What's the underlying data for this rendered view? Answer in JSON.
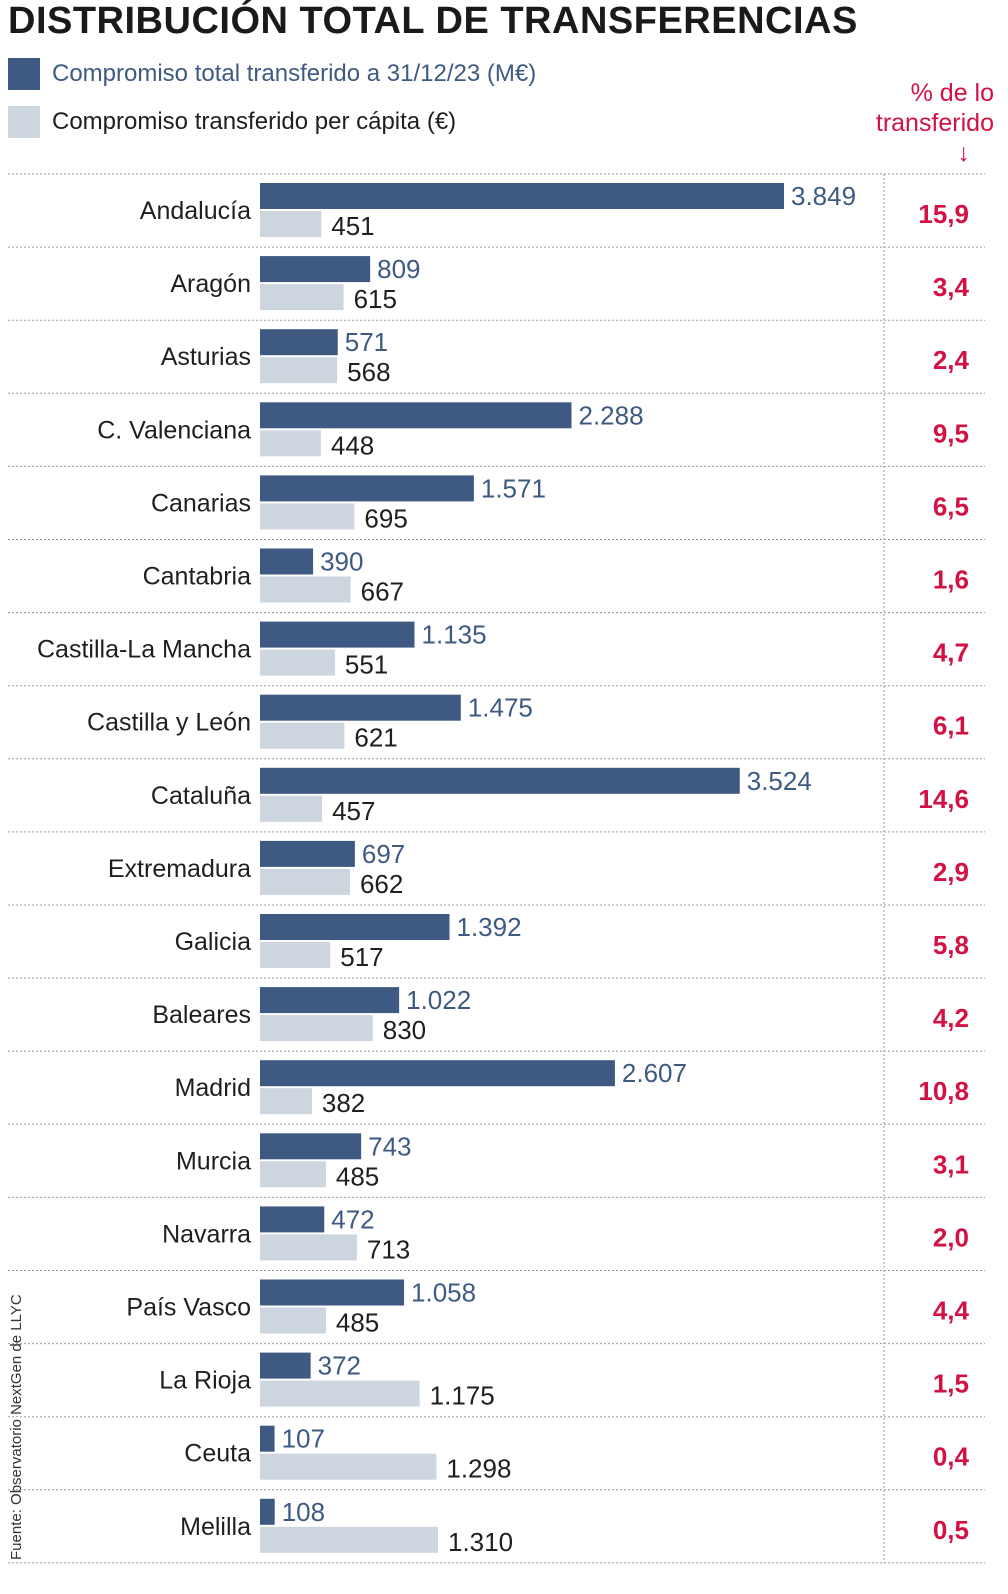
{
  "title": "DISTRIBUCIÓN TOTAL DE TRANSFERENCIAS",
  "legend": {
    "series1": "Compromiso total transferido a 31/12/23 (M€)",
    "series2": "Compromiso transferido per cápita (€)",
    "pct_header_line1": "% de lo",
    "pct_header_line2": "transferido",
    "pct_arrow": "↓"
  },
  "source": "Fuente: Observatorio NextGen de LLYC",
  "colors": {
    "series1": "#3e5a82",
    "series2": "#cdd5df",
    "pct": "#d31145",
    "label1": "#3e5a82",
    "label2": "#1f1f1f"
  },
  "chart_data": {
    "type": "bar",
    "orientation": "horizontal",
    "categories": [
      "Andalucía",
      "Aragón",
      "Asturias",
      "C. Valenciana",
      "Canarias",
      "Cantabria",
      "Castilla-La Mancha",
      "Castilla y León",
      "Cataluña",
      "Extremadura",
      "Galicia",
      "Baleares",
      "Madrid",
      "Murcia",
      "Navarra",
      "País Vasco",
      "La Rioja",
      "Ceuta",
      "Melilla"
    ],
    "series": [
      {
        "name": "Compromiso total transferido a 31/12/23 (M€)",
        "values": [
          3849,
          809,
          571,
          2288,
          1571,
          390,
          1135,
          1475,
          3524,
          697,
          1392,
          1022,
          2607,
          743,
          472,
          1058,
          372,
          107,
          108
        ],
        "labels": [
          "3.849",
          "809",
          "571",
          "2.288",
          "1.571",
          "390",
          "1.135",
          "1.475",
          "3.524",
          "697",
          "1.392",
          "1.022",
          "2.607",
          "743",
          "472",
          "1.058",
          "372",
          "107",
          "108"
        ]
      },
      {
        "name": "Compromiso transferido per cápita (€)",
        "values": [
          451,
          615,
          568,
          448,
          695,
          667,
          551,
          621,
          457,
          662,
          517,
          830,
          382,
          485,
          713,
          485,
          1175,
          1298,
          1310
        ],
        "labels": [
          "451",
          "615",
          "568",
          "448",
          "695",
          "667",
          "551",
          "621",
          "457",
          "662",
          "517",
          "830",
          "382",
          "485",
          "713",
          "485",
          "1.175",
          "1.298",
          "1.310"
        ]
      }
    ],
    "pct_transferido": [
      "15,9",
      "3,4",
      "2,4",
      "9,5",
      "6,5",
      "1,6",
      "4,7",
      "6,1",
      "14,6",
      "2,9",
      "5,8",
      "4,2",
      "10,8",
      "3,1",
      "2,0",
      "4,4",
      "1,5",
      "0,4",
      "0,5"
    ]
  }
}
